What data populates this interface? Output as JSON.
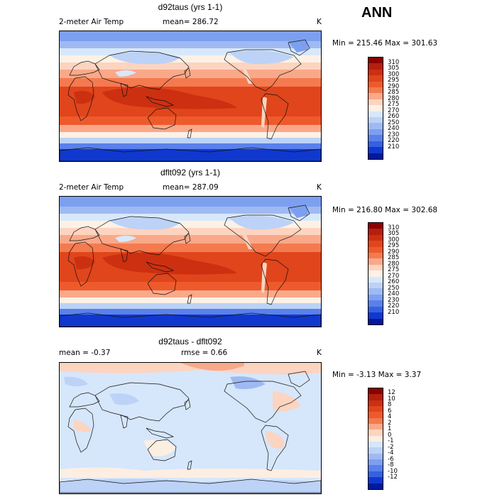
{
  "header": {
    "season": "ANN"
  },
  "panels": [
    {
      "title": "d92taus (yrs 1-1)",
      "variable": "2-meter Air Temp",
      "stat_left": "mean= 286.72",
      "stat_mid": "",
      "units": "K",
      "minmax": "Min = 215.46 Max = 301.63",
      "colorbar": {
        "labels": [
          "310",
          "305",
          "300",
          "295",
          "290",
          "285",
          "280",
          "275",
          "270",
          "260",
          "250",
          "240",
          "230",
          "220",
          "210"
        ],
        "colors": [
          "#8b0000",
          "#b3200c",
          "#cc3010",
          "#e0451c",
          "#ee5a2c",
          "#f47a50",
          "#f9a98a",
          "#fcd4c0",
          "#fdf1e6",
          "#d8e8fb",
          "#bcd2f6",
          "#9fbaf2",
          "#7d9ff0",
          "#5a80eb",
          "#3560e0",
          "#1038cf",
          "#001a9c"
        ]
      },
      "map_type": "temperature"
    },
    {
      "title": "dflt092 (yrs 1-1)",
      "variable": "2-meter Air Temp",
      "stat_left": "mean= 287.09",
      "stat_mid": "",
      "units": "K",
      "minmax": "Min = 216.80 Max = 302.68",
      "colorbar": {
        "labels": [
          "310",
          "305",
          "300",
          "295",
          "290",
          "285",
          "280",
          "275",
          "270",
          "260",
          "250",
          "240",
          "230",
          "220",
          "210"
        ],
        "colors": [
          "#8b0000",
          "#b3200c",
          "#cc3010",
          "#e0451c",
          "#ee5a2c",
          "#f47a50",
          "#f9a98a",
          "#fcd4c0",
          "#fdf1e6",
          "#d8e8fb",
          "#bcd2f6",
          "#9fbaf2",
          "#7d9ff0",
          "#5a80eb",
          "#3560e0",
          "#1038cf",
          "#001a9c"
        ]
      },
      "map_type": "temperature"
    },
    {
      "title": "d92taus - dflt092",
      "variable": "",
      "stat_left": "mean =   -0.37",
      "stat_mid": "rmse =   0.66",
      "units": "K",
      "minmax": "Min =  -3.13 Max =   3.37",
      "colorbar": {
        "labels": [
          "12",
          "10",
          "8",
          "6",
          "4",
          "2",
          "1",
          "0",
          "-1",
          "-2",
          "-4",
          "-6",
          "-8",
          "-10",
          "-12"
        ],
        "colors": [
          "#8b0000",
          "#b3200c",
          "#cc3010",
          "#e0451c",
          "#ee5a2c",
          "#f47a50",
          "#f9a98a",
          "#fcd4c0",
          "#fdeee2",
          "#d6e6fb",
          "#bcd2f6",
          "#9fbaf2",
          "#7d9ff0",
          "#5a80eb",
          "#3560e0",
          "#1038cf",
          "#001a9c"
        ]
      },
      "map_type": "difference"
    }
  ]
}
